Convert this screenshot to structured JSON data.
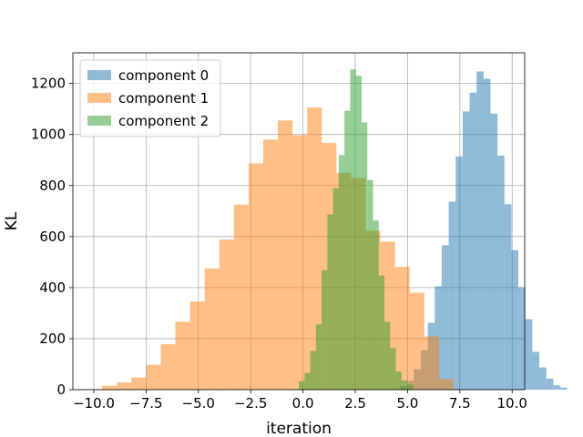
{
  "chart_data": {
    "type": "histogram",
    "xlabel": "iteration",
    "ylabel": "KL",
    "xlim": [
      -11.0,
      10.6
    ],
    "ylim": [
      0,
      1320
    ],
    "xticks": [
      -10.0,
      -7.5,
      -5.0,
      -2.5,
      0.0,
      2.5,
      5.0,
      7.5,
      10.0
    ],
    "xtick_labels": [
      "−10.0",
      "−7.5",
      "−5.0",
      "−2.5",
      "0.0",
      "2.5",
      "5.0",
      "7.5",
      "10.0"
    ],
    "yticks": [
      0,
      200,
      400,
      600,
      800,
      1000,
      1200
    ],
    "ytick_labels": [
      "0",
      "200",
      "400",
      "600",
      "800",
      "1000",
      "1200"
    ],
    "grid": true,
    "legend_position": "upper-left",
    "alpha": 0.5,
    "series": [
      {
        "name": "component 0",
        "color": "#1f77b4",
        "bin_start": 4.3,
        "bin_width": 0.3333,
        "counts": [
          3,
          14,
          35,
          80,
          155,
          262,
          405,
          566,
          737,
          914,
          1090,
          1164,
          1247,
          1218,
          1082,
          917,
          727,
          547,
          401,
          276,
          148,
          87,
          43,
          17,
          8
        ]
      },
      {
        "name": "component 1",
        "color": "#ff7f0e",
        "bin_start": -10.3,
        "bin_width": 0.7,
        "counts": [
          2,
          15,
          28,
          48,
          97,
          178,
          266,
          345,
          475,
          588,
          725,
          887,
          980,
          1055,
          997,
          1106,
          967,
          850,
          830,
          623,
          580,
          481,
          380,
          209,
          41
        ]
      },
      {
        "name": "component 2",
        "color": "#2ca02c",
        "bin_start": -0.2,
        "bin_width": 0.273,
        "counts": [
          33,
          66,
          152,
          256,
          468,
          687,
          789,
          919,
          1093,
          1255,
          1230,
          1047,
          821,
          663,
          447,
          266,
          163,
          71,
          36,
          20
        ]
      }
    ]
  }
}
